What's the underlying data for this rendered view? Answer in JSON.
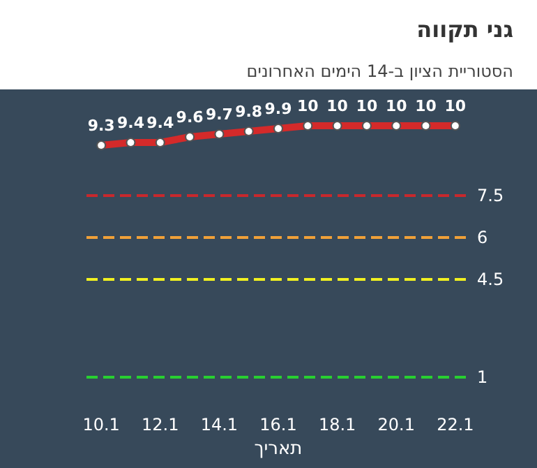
{
  "chart_data": {
    "type": "line",
    "title": "גני תקווה",
    "subtitle": "הסטוריית הציון ב-14 הימים האחרונים",
    "xlabel": "תאריך",
    "categories": [
      "10.1",
      null,
      "12.1",
      null,
      "14.1",
      null,
      "16.1",
      null,
      "18.1",
      null,
      "20.1",
      null,
      "22.1"
    ],
    "series": [
      {
        "color": "#d42a2a",
        "values": [
          9.3,
          9.4,
          9.4,
          9.6,
          9.7,
          9.8,
          9.9,
          10,
          10,
          10,
          10,
          10,
          10
        ]
      }
    ],
    "data_labels": true,
    "marker": "circle",
    "line_style": "solid",
    "tick_labels": "x",
    "grid": false,
    "ref_lines": [
      {
        "axis": "y",
        "value": 7.5,
        "label": "7.5",
        "color": "#c8282d",
        "line_style": "dashed"
      },
      {
        "axis": "y",
        "value": 6,
        "label": "6",
        "color": "#f0a038",
        "line_style": "dashed"
      },
      {
        "axis": "y",
        "value": 4.5,
        "label": "4.5",
        "color": "#f0f020",
        "line_style": "dashed"
      },
      {
        "axis": "y",
        "value": 1,
        "label": "1",
        "color": "#28d030",
        "line_style": "dashed"
      }
    ]
  }
}
